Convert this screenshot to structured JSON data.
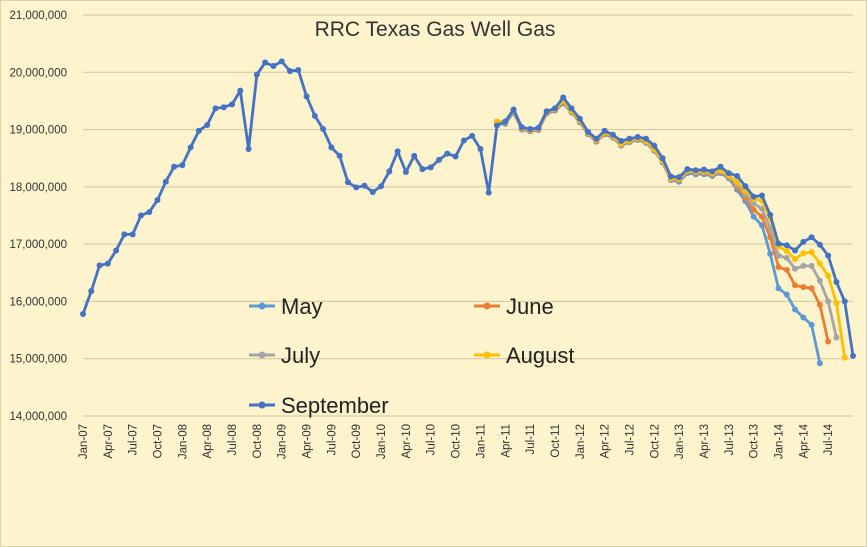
{
  "chart_data": {
    "type": "line",
    "title": "RRC Texas Gas Well Gas",
    "xlabel": "",
    "ylabel": "",
    "ylim": [
      14000000,
      21000000
    ],
    "y_ticks": [
      14000000,
      15000000,
      16000000,
      17000000,
      18000000,
      19000000,
      20000000,
      21000000
    ],
    "y_tick_labels": [
      "14,000,000",
      "15,000,000",
      "16,000,000",
      "17,000,000",
      "18,000,000",
      "19,000,000",
      "20,000,000",
      "21,000,000"
    ],
    "x_tick_labels": [
      "Jan-07",
      "Apr-07",
      "Jul-07",
      "Oct-07",
      "Jan-08",
      "Apr-08",
      "Jul-08",
      "Oct-08",
      "Jan-09",
      "Apr-09",
      "Jul-09",
      "Oct-09",
      "Jan-10",
      "Apr-10",
      "Jul-10",
      "Oct-10",
      "Jan-11",
      "Apr-11",
      "Jul-11",
      "Oct-11",
      "Jan-12",
      "Apr-12",
      "Jul-12",
      "Oct-12",
      "Jan-13",
      "Apr-13",
      "Jul-13",
      "Oct-13",
      "Jan-14",
      "Apr-14",
      "Jul-14"
    ],
    "x_start": "Jan-07",
    "grid": true,
    "legend_position": "inside-bottom",
    "series": [
      {
        "name": "May",
        "color": "#5b9bd5",
        "start_index": 50,
        "values": [
          19100000,
          19100000,
          19300000,
          19000000,
          18970000,
          18990000,
          19280000,
          19330000,
          19460000,
          19300000,
          19130000,
          18920000,
          18790000,
          18920000,
          18860000,
          18720000,
          18780000,
          18820000,
          18770000,
          18630000,
          18430000,
          18120000,
          18090000,
          18240000,
          18220000,
          18220000,
          18190000,
          18240000,
          18150000,
          17950000,
          17750000,
          17480000,
          17330000,
          16830000,
          16230000,
          16120000,
          15860000,
          15720000,
          15590000,
          14920000
        ]
      },
      {
        "name": "June",
        "color": "#ed7d31",
        "start_index": 50,
        "values": [
          19120000,
          19120000,
          19320000,
          19010000,
          18980000,
          19000000,
          19290000,
          19340000,
          19480000,
          19310000,
          19140000,
          18930000,
          18800000,
          18930000,
          18870000,
          18730000,
          18790000,
          18830000,
          18780000,
          18640000,
          18440000,
          18130000,
          18110000,
          18260000,
          18240000,
          18240000,
          18210000,
          18260000,
          18170000,
          17990000,
          17810000,
          17600000,
          17480000,
          17120000,
          16600000,
          16550000,
          16280000,
          16250000,
          16230000,
          15940000,
          15300000
        ]
      },
      {
        "name": "July",
        "color": "#a5a5a5",
        "start_index": 50,
        "values": [
          19130000,
          19130000,
          19330000,
          19020000,
          18990000,
          19010000,
          19300000,
          19350000,
          19490000,
          19320000,
          19150000,
          18940000,
          18810000,
          18940000,
          18880000,
          18740000,
          18800000,
          18840000,
          18790000,
          18650000,
          18450000,
          18140000,
          18120000,
          18270000,
          18250000,
          18250000,
          18220000,
          18270000,
          18180000,
          18030000,
          17870000,
          17710000,
          17620000,
          17280000,
          16800000,
          16760000,
          16570000,
          16620000,
          16620000,
          16360000,
          16000000,
          15370000
        ]
      },
      {
        "name": "August",
        "color": "#ffc000",
        "start_index": 50,
        "values": [
          19140000,
          19140000,
          19340000,
          19030000,
          19000000,
          19020000,
          19310000,
          19360000,
          19500000,
          19330000,
          19160000,
          18950000,
          18820000,
          18950000,
          18890000,
          18750000,
          18810000,
          18850000,
          18800000,
          18660000,
          18460000,
          18150000,
          18140000,
          18290000,
          18270000,
          18270000,
          18240000,
          18290000,
          18200000,
          18080000,
          17930000,
          17790000,
          17760000,
          17450000,
          16960000,
          16880000,
          16740000,
          16840000,
          16860000,
          16660000,
          16450000,
          15970000,
          15020000
        ]
      },
      {
        "name": "September",
        "color": "#4472c4",
        "start_index": 0,
        "values": [
          15780000,
          16180000,
          16630000,
          16660000,
          16890000,
          17170000,
          17170000,
          17500000,
          17560000,
          17770000,
          18090000,
          18350000,
          18380000,
          18690000,
          18980000,
          19080000,
          19370000,
          19390000,
          19440000,
          19680000,
          18660000,
          19960000,
          20170000,
          20110000,
          20190000,
          20020000,
          20040000,
          19580000,
          19240000,
          19010000,
          18690000,
          18540000,
          18080000,
          17990000,
          18020000,
          17910000,
          18010000,
          18270000,
          18620000,
          18260000,
          18540000,
          18310000,
          18340000,
          18470000,
          18580000,
          18530000,
          18810000,
          18890000,
          18660000,
          17900000,
          19070000,
          19140000,
          19350000,
          19040000,
          19010000,
          19030000,
          19320000,
          19370000,
          19560000,
          19370000,
          19190000,
          18960000,
          18840000,
          18980000,
          18910000,
          18800000,
          18840000,
          18870000,
          18840000,
          18720000,
          18500000,
          18180000,
          18170000,
          18310000,
          18290000,
          18300000,
          18270000,
          18350000,
          18240000,
          18190000,
          18010000,
          17830000,
          17850000,
          17510000,
          17010000,
          16980000,
          16890000,
          17040000,
          17120000,
          16990000,
          16800000,
          16340000,
          16000000,
          15050000
        ]
      }
    ]
  }
}
